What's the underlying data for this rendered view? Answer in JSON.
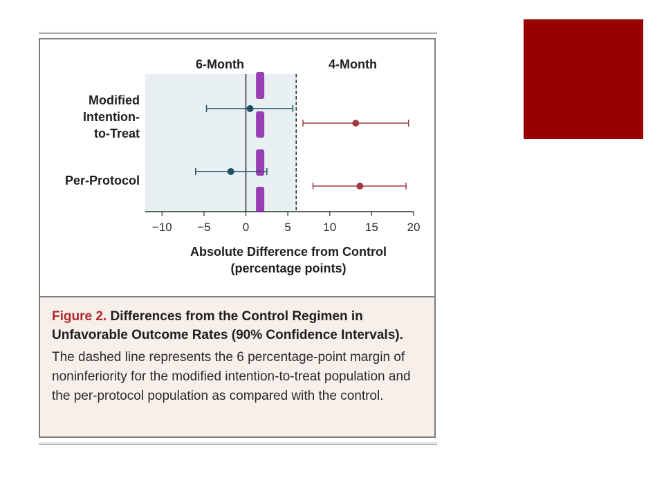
{
  "chart_data": {
    "type": "forest",
    "column_headers": [
      "6-Month",
      "4-Month"
    ],
    "xlabel": [
      "Absolute Difference from Control",
      "(percentage points)"
    ],
    "xlim": [
      -12,
      20
    ],
    "xticks": [
      -10,
      -5,
      0,
      5,
      10,
      15,
      20
    ],
    "xtick_labels": [
      "−10",
      "−5",
      "0",
      "5",
      "10",
      "15",
      "20"
    ],
    "noninferiority_margin": 6,
    "shaded_region": [
      -12,
      6
    ],
    "row_labels": [
      [
        "Modified",
        "Intention-",
        "to-Treat"
      ],
      [
        "Per-Protocol"
      ]
    ],
    "series": [
      {
        "name": "6-Month",
        "color": "#1f4e6b",
        "points": [
          {
            "row": "Modified Intention-to-Treat",
            "estimate": 0.5,
            "ci": [
              -4.7,
              5.6
            ]
          },
          {
            "row": "Per-Protocol",
            "estimate": -1.8,
            "ci": [
              -6.0,
              2.5
            ]
          }
        ]
      },
      {
        "name": "4-Month",
        "color": "#a23a3e",
        "points": [
          {
            "row": "Modified Intention-to-Treat",
            "estimate": 13.1,
            "ci": [
              6.8,
              19.4
            ]
          },
          {
            "row": "Per-Protocol",
            "estimate": 13.6,
            "ci": [
              8.0,
              19.1
            ]
          }
        ]
      }
    ],
    "grid": false
  },
  "caption": {
    "figure_label": "Figure 2.",
    "title": "Differences from the Control Regimen in Unfavorable Outcome Rates (90% Confidence Intervals).",
    "body": "The dashed line represents the 6 percentage-point margin of noninferiority for the modified intention-to-treat population and the per-protocol population as compared with the control."
  },
  "colors": {
    "shading": "#e8f0f1",
    "axis": "#2b2b2b",
    "highlight_dashes": "#8b1fa8",
    "accent_block": "#990000",
    "caption_background": "#f7efe9"
  }
}
